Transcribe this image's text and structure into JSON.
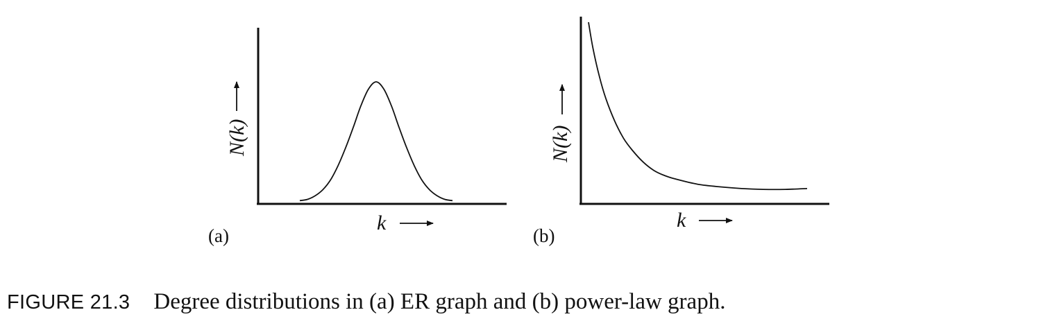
{
  "chart_data": [
    {
      "type": "line",
      "panel_label": "(a)",
      "xlabel": "k",
      "ylabel": "N(k)",
      "shape": "bell curve",
      "grid": false,
      "x": [
        0,
        0.05,
        0.1,
        0.15,
        0.2,
        0.25,
        0.3,
        0.35,
        0.4,
        0.45,
        0.5,
        0.55,
        0.6,
        0.65,
        0.7,
        0.75,
        0.8,
        0.85,
        0.9,
        0.95,
        1.0
      ],
      "y": [
        0.01,
        0.02,
        0.05,
        0.1,
        0.18,
        0.3,
        0.45,
        0.62,
        0.8,
        0.94,
        1.0,
        0.94,
        0.8,
        0.62,
        0.45,
        0.3,
        0.18,
        0.1,
        0.05,
        0.02,
        0.01
      ]
    },
    {
      "type": "line",
      "panel_label": "(b)",
      "xlabel": "k",
      "ylabel": "N(k)",
      "shape": "power-law decay",
      "grid": false,
      "x": [
        0,
        0.02,
        0.05,
        0.08,
        0.12,
        0.16,
        0.2,
        0.25,
        0.3,
        0.35,
        0.4,
        0.5,
        0.6,
        0.7,
        0.8,
        0.9,
        1.0
      ],
      "y": [
        1.0,
        0.85,
        0.68,
        0.55,
        0.42,
        0.32,
        0.25,
        0.18,
        0.13,
        0.1,
        0.08,
        0.05,
        0.035,
        0.025,
        0.02,
        0.02,
        0.025
      ]
    }
  ],
  "caption": {
    "label": "FIGURE 21.3",
    "text": "Degree distributions in (a) ER graph and (b) power-law graph."
  }
}
